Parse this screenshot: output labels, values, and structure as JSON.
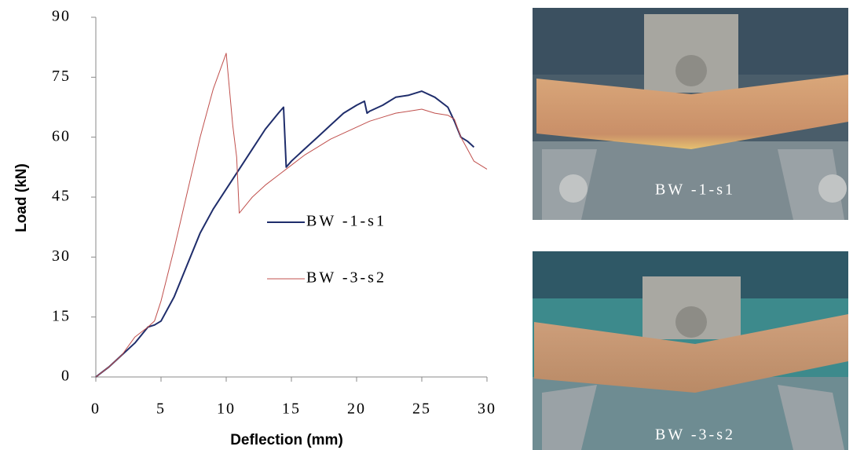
{
  "chart_data": {
    "type": "line",
    "xlabel": "Deflection (mm)",
    "ylabel": "Load (kN)",
    "xlim": [
      0,
      30
    ],
    "ylim": [
      0,
      90
    ],
    "xticks": [
      0,
      5,
      10,
      15,
      20,
      25,
      30
    ],
    "yticks": [
      0,
      15,
      30,
      45,
      60,
      75,
      90
    ],
    "series": [
      {
        "name": "BW -1-s1",
        "color": "#1f2d6b",
        "width": 2,
        "x": [
          0,
          1,
          2,
          3,
          4,
          4.5,
          5,
          6,
          7,
          8,
          9,
          10,
          11,
          12,
          13,
          14,
          14.4,
          14.6,
          15,
          16,
          17,
          18,
          19,
          20,
          20.6,
          20.8,
          21,
          22,
          23,
          24,
          25,
          26,
          27,
          27.5,
          28,
          28.5,
          29
        ],
        "values": [
          0,
          2.5,
          5.5,
          8.5,
          12.5,
          13,
          14,
          20,
          28,
          36,
          42,
          47,
          52,
          57,
          62,
          66,
          67.5,
          52.5,
          54,
          57,
          60,
          63,
          66,
          68,
          69,
          66,
          66.5,
          68,
          70,
          70.5,
          71.5,
          70,
          67.5,
          64,
          60,
          59,
          57.5
        ]
      },
      {
        "name": "BW -3-s2",
        "color": "#c0504d",
        "width": 1,
        "x": [
          0,
          1,
          2,
          3,
          4,
          4.5,
          5,
          6,
          7,
          8,
          9,
          10,
          10.5,
          10.8,
          11,
          12,
          13,
          14,
          15,
          16,
          17,
          18,
          19,
          20,
          21,
          22,
          23,
          24,
          25,
          26,
          27,
          27.5,
          28,
          28.5,
          29,
          29.5,
          30
        ],
        "values": [
          0,
          2.5,
          5.5,
          10,
          12.5,
          14,
          19,
          32,
          46,
          60,
          72,
          81,
          63,
          55,
          41,
          45,
          48,
          50.5,
          53,
          55.5,
          57.5,
          59.5,
          61,
          62.5,
          64,
          65,
          66,
          66.5,
          67,
          66,
          65.5,
          64.5,
          60,
          57,
          54,
          53,
          52
        ]
      }
    ]
  },
  "images": [
    {
      "caption": "BW -1-s1"
    },
    {
      "caption": "BW -3-s2"
    }
  ]
}
